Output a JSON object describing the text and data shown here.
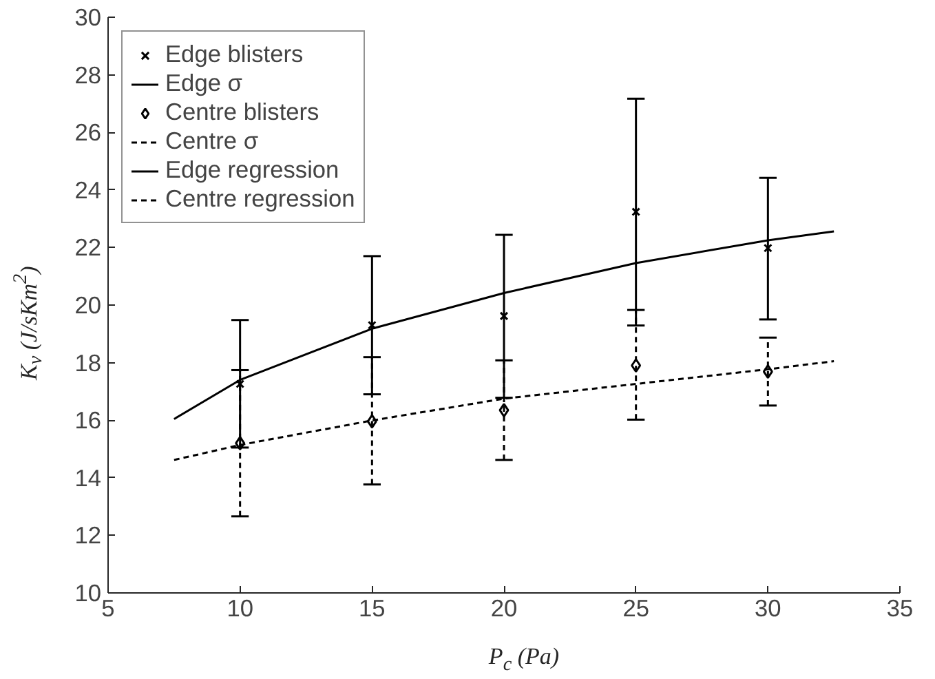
{
  "chart_data": {
    "type": "scatter",
    "xlabel": "P$_{c}$ (Pa)",
    "ylabel": "K$_{v}$ (J/sKm$^{2}$)",
    "xlim": [
      5,
      35
    ],
    "xticks": [
      5,
      10,
      15,
      20,
      25,
      30,
      35
    ],
    "ylim": [
      10,
      30
    ],
    "yticks": [
      10,
      12,
      14,
      16,
      18,
      20,
      22,
      24,
      26,
      28,
      30
    ],
    "grid": false,
    "legend": "top left",
    "series": [
      {
        "name": "Edge blisters",
        "marker": "cross",
        "line_style": "solid",
        "color": "#000000",
        "x": [
          10,
          15,
          20,
          25,
          30
        ],
        "values": [
          17.26,
          19.3,
          19.62,
          23.24,
          21.98
        ],
        "errors": [
          [
            15.05,
            19.48
          ],
          [
            16.9,
            21.7
          ],
          [
            16.78,
            22.44
          ],
          [
            19.29,
            27.17
          ],
          [
            19.5,
            24.42
          ]
        ]
      },
      {
        "name": "Edge σ"
      },
      {
        "name": "Centre blisters",
        "marker": "diamond",
        "line_style": "dashed",
        "color": "#000000",
        "x": [
          10,
          15,
          20,
          25,
          30
        ],
        "values": [
          15.2,
          15.96,
          16.35,
          17.9,
          17.69
        ],
        "errors": [
          [
            12.66,
            17.74
          ],
          [
            13.77,
            18.19
          ],
          [
            14.62,
            18.08
          ],
          [
            16.02,
            19.83
          ],
          [
            16.51,
            18.87
          ]
        ]
      },
      {
        "name": "Centre σ"
      },
      {
        "name": "Edge regression",
        "type": "line",
        "line_style": "solid",
        "color": "#000000",
        "x": [
          7.5,
          10,
          15,
          20,
          25,
          30,
          32.5
        ],
        "values": [
          16.04,
          17.4,
          19.18,
          20.42,
          21.46,
          22.25,
          22.56
        ]
      },
      {
        "name": "Centre regression",
        "type": "line",
        "line_style": "dashed",
        "color": "#000000",
        "x": [
          7.5,
          10,
          15,
          20,
          25,
          30,
          32.5
        ],
        "values": [
          14.62,
          15.14,
          15.99,
          16.75,
          17.26,
          17.77,
          18.05
        ]
      }
    ]
  }
}
